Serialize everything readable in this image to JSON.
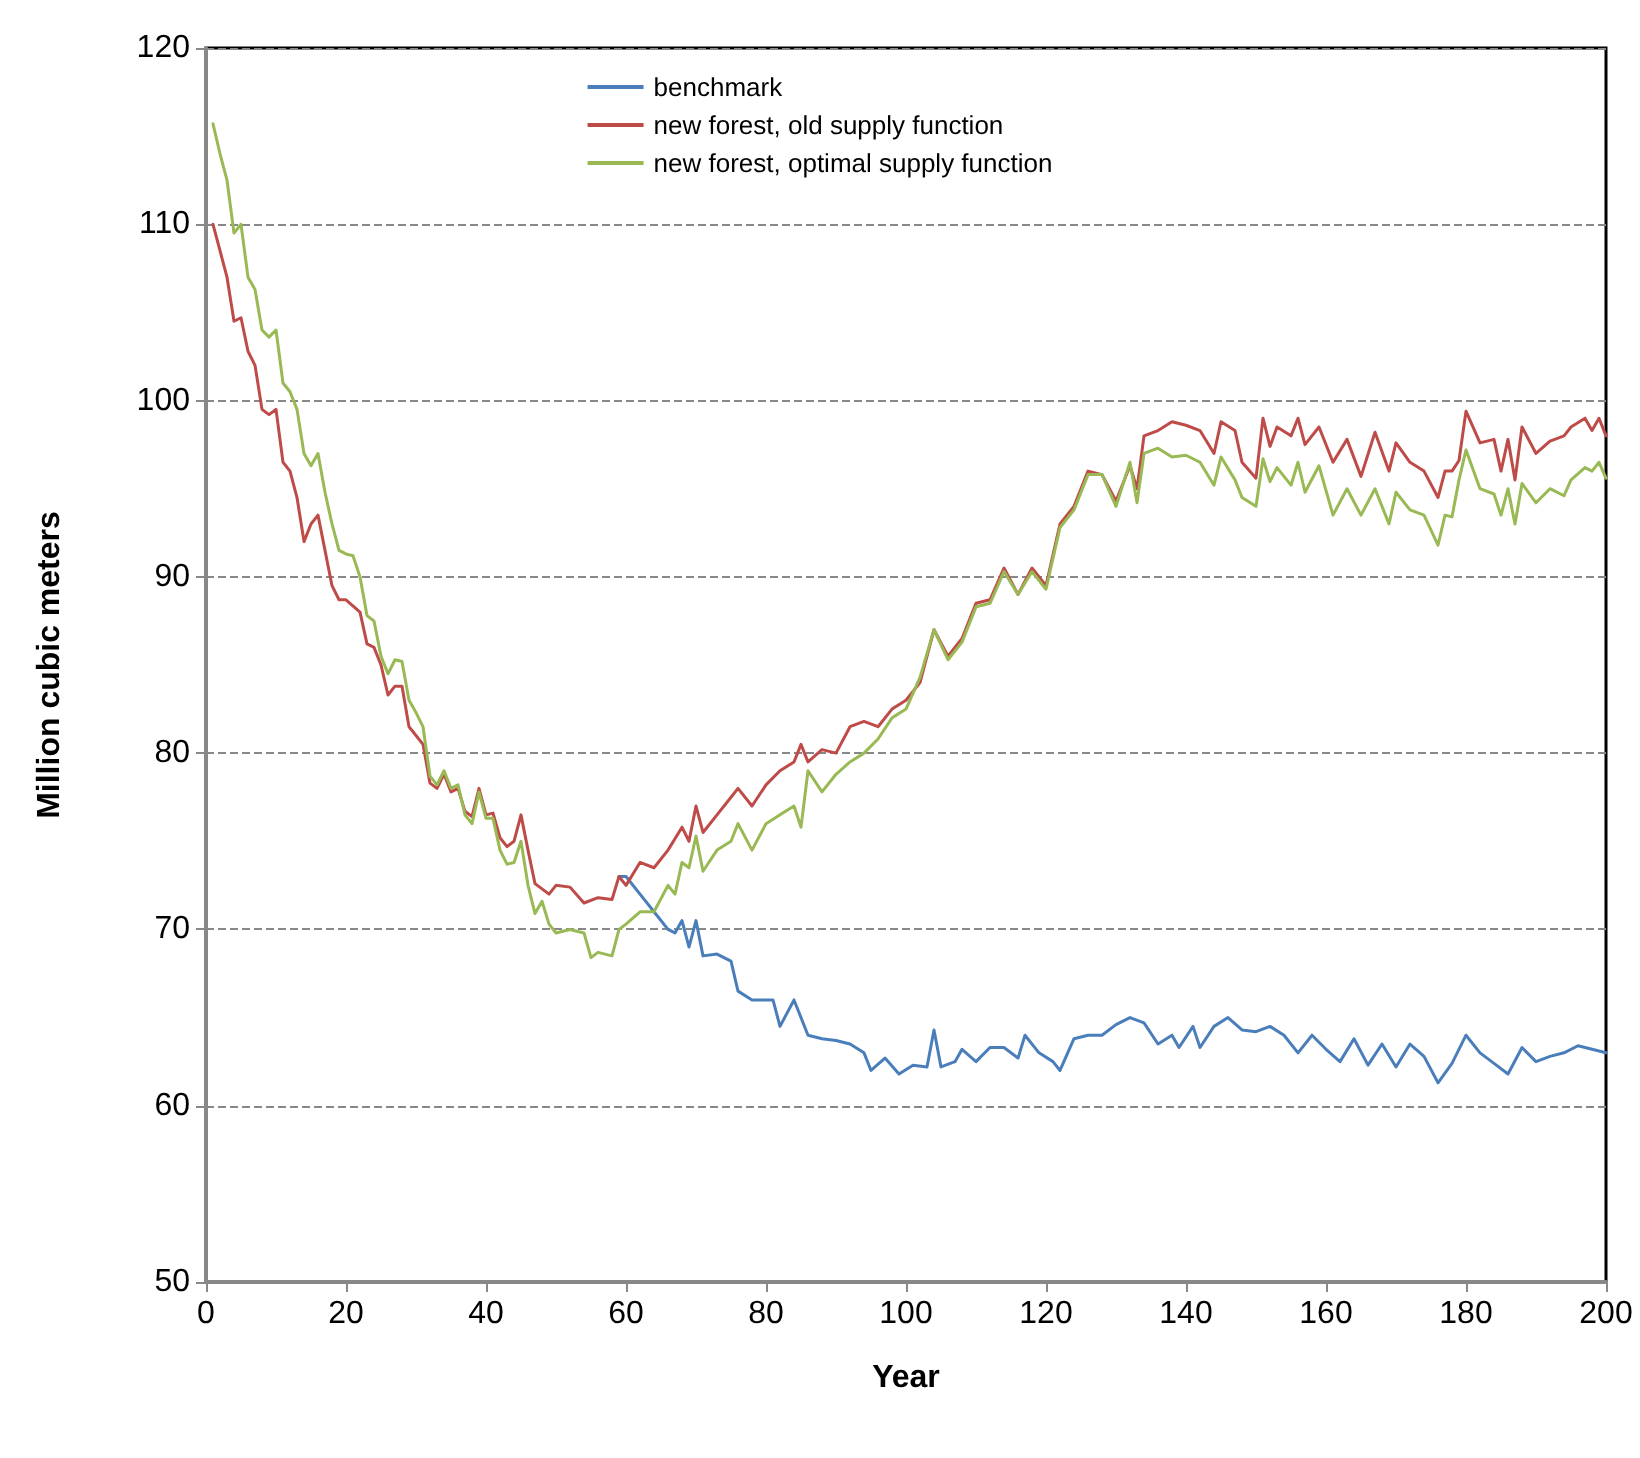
{
  "chart_data": {
    "type": "line",
    "xlabel": "Year",
    "ylabel": "Million cubic meters",
    "xlim": [
      0,
      200
    ],
    "xticks": [
      0,
      20,
      40,
      60,
      80,
      100,
      120,
      140,
      160,
      180,
      200
    ],
    "ylim": [
      50,
      120
    ],
    "yticks": [
      50,
      60,
      70,
      80,
      90,
      100,
      110,
      120
    ],
    "grid": "y",
    "legend": "top",
    "marker": "none",
    "line_style": "solid",
    "series": [
      {
        "name": "benchmark",
        "color": "#4a7ebb",
        "x": [
          59,
          60,
          62,
          64,
          66,
          67,
          68,
          69,
          70,
          71,
          73,
          75,
          76,
          78,
          80,
          81,
          82,
          84,
          86,
          88,
          90,
          92,
          94,
          95,
          97,
          99,
          101,
          103,
          104,
          105,
          107,
          108,
          110,
          112,
          114,
          116,
          117,
          119,
          121,
          122,
          124,
          126,
          128,
          130,
          132,
          134,
          136,
          138,
          139,
          141,
          142,
          144,
          146,
          148,
          150,
          152,
          154,
          156,
          158,
          160,
          162,
          164,
          166,
          168,
          170,
          172,
          174,
          176,
          178,
          180,
          182,
          184,
          186,
          188,
          190,
          192,
          194,
          196,
          198,
          200
        ],
        "values": [
          73,
          73,
          72,
          71,
          70,
          69.8,
          70.5,
          69,
          70.5,
          68.5,
          68.6,
          68.2,
          66.5,
          66,
          66,
          66,
          64.5,
          66,
          64,
          63.8,
          63.7,
          63.5,
          63,
          62,
          62.7,
          61.8,
          62.3,
          62.2,
          64.3,
          62.2,
          62.5,
          63.2,
          62.5,
          63.3,
          63.3,
          62.7,
          64,
          63,
          62.5,
          62,
          63.8,
          64,
          64,
          64.6,
          65,
          64.7,
          63.5,
          64,
          63.3,
          64.5,
          63.3,
          64.5,
          65,
          64.3,
          64.2,
          64.5,
          64,
          63,
          64,
          63.2,
          62.5,
          63.8,
          62.3,
          63.5,
          62.2,
          63.5,
          62.8,
          61.3,
          62.4,
          64,
          63,
          62.4,
          61.8,
          63.3,
          62.5,
          62.8,
          63,
          63.4,
          63.2,
          63
        ]
      },
      {
        "name": "new forest, old supply function",
        "color": "#be4b48",
        "x": [
          1,
          2,
          3,
          4,
          5,
          6,
          7,
          8,
          9,
          10,
          11,
          12,
          13,
          14,
          15,
          16,
          17,
          18,
          19,
          20,
          22,
          23,
          24,
          25,
          26,
          27,
          28,
          29,
          30,
          31,
          32,
          33,
          34,
          35,
          36,
          37,
          38,
          39,
          40,
          41,
          42,
          43,
          44,
          45,
          46,
          47,
          48,
          49,
          50,
          52,
          54,
          56,
          58,
          59,
          60,
          62,
          64,
          66,
          68,
          69,
          70,
          71,
          73,
          75,
          76,
          78,
          80,
          82,
          84,
          85,
          86,
          88,
          90,
          92,
          94,
          96,
          98,
          100,
          102,
          104,
          106,
          108,
          110,
          112,
          114,
          116,
          118,
          120,
          122,
          124,
          126,
          128,
          130,
          132,
          133,
          134,
          136,
          138,
          140,
          142,
          144,
          145,
          147,
          148,
          150,
          151,
          152,
          153,
          155,
          156,
          157,
          159,
          161,
          163,
          165,
          167,
          169,
          170,
          172,
          174,
          176,
          177,
          178,
          179,
          180,
          182,
          184,
          185,
          186,
          187,
          188,
          190,
          192,
          194,
          195,
          197,
          198,
          199,
          200
        ],
        "values": [
          110,
          108.5,
          107,
          104.5,
          104.7,
          102.8,
          102,
          99.5,
          99.2,
          99.5,
          96.5,
          96,
          94.5,
          92,
          93,
          93.5,
          91.5,
          89.5,
          88.7,
          88.7,
          88,
          86.2,
          86,
          85,
          83.3,
          83.8,
          83.8,
          81.5,
          81,
          80.5,
          78.3,
          78,
          78.8,
          77.8,
          78,
          76.7,
          76.4,
          78,
          76.5,
          76.6,
          75.2,
          74.7,
          75,
          76.5,
          74.5,
          72.6,
          72.3,
          72,
          72.5,
          72.4,
          71.5,
          71.8,
          71.7,
          73,
          72.5,
          73.8,
          73.5,
          74.5,
          75.8,
          75,
          77,
          75.5,
          76.5,
          77.5,
          78,
          77,
          78.2,
          79,
          79.5,
          80.5,
          79.5,
          80.2,
          80,
          81.5,
          81.8,
          81.5,
          82.5,
          83,
          84,
          87,
          85.5,
          86.5,
          88.5,
          88.7,
          90.5,
          89,
          90.5,
          89.5,
          93,
          94,
          96,
          95.8,
          94.3,
          96.3,
          95,
          98,
          98.3,
          98.8,
          98.6,
          98.3,
          97,
          98.8,
          98.3,
          96.5,
          95.6,
          99,
          97.4,
          98.5,
          98,
          99,
          97.5,
          98.5,
          96.5,
          97.8,
          95.7,
          98.2,
          96,
          97.6,
          96.5,
          96,
          94.5,
          96,
          96,
          96.6,
          99.4,
          97.6,
          97.8,
          96,
          97.8,
          95.5,
          98.5,
          97,
          97.7,
          98,
          98.5,
          99,
          98.3,
          99,
          98
        ]
      },
      {
        "name": "new forest, optimal supply function",
        "color": "#98b954",
        "x": [
          1,
          2,
          3,
          4,
          5,
          6,
          7,
          8,
          9,
          10,
          11,
          12,
          13,
          14,
          15,
          16,
          17,
          18,
          19,
          20,
          21,
          22,
          23,
          24,
          25,
          26,
          27,
          28,
          29,
          30,
          31,
          32,
          33,
          34,
          35,
          36,
          37,
          38,
          39,
          40,
          41,
          42,
          43,
          44,
          45,
          46,
          47,
          48,
          49,
          50,
          52,
          54,
          55,
          56,
          58,
          59,
          60,
          62,
          64,
          66,
          67,
          68,
          69,
          70,
          71,
          73,
          75,
          76,
          78,
          80,
          82,
          84,
          85,
          86,
          88,
          90,
          92,
          94,
          96,
          98,
          100,
          102,
          104,
          106,
          108,
          110,
          112,
          114,
          116,
          118,
          120,
          122,
          124,
          126,
          128,
          130,
          132,
          133,
          134,
          136,
          138,
          140,
          142,
          144,
          145,
          147,
          148,
          150,
          151,
          152,
          153,
          155,
          156,
          157,
          159,
          161,
          163,
          165,
          167,
          169,
          170,
          172,
          174,
          176,
          177,
          178,
          179,
          180,
          182,
          184,
          185,
          186,
          187,
          188,
          190,
          192,
          194,
          195,
          197,
          198,
          199,
          200
        ],
        "values": [
          115.7,
          114,
          112.5,
          109.5,
          110,
          107,
          106.3,
          104,
          103.6,
          104,
          101,
          100.5,
          99.5,
          97,
          96.3,
          97,
          94.8,
          93,
          91.5,
          91.3,
          91.2,
          90,
          87.8,
          87.5,
          85.5,
          84.5,
          85.3,
          85.2,
          83,
          82.3,
          81.5,
          78.7,
          78.2,
          79,
          78,
          78.2,
          76.5,
          76,
          77.8,
          76.3,
          76.3,
          74.5,
          73.7,
          73.8,
          75,
          72.5,
          70.9,
          71.6,
          70.3,
          69.8,
          70,
          69.8,
          68.4,
          68.7,
          68.5,
          70,
          70.3,
          71,
          71,
          72.5,
          72,
          73.8,
          73.5,
          75.3,
          73.3,
          74.5,
          75,
          76,
          74.5,
          76,
          76.5,
          77,
          75.8,
          79,
          77.8,
          78.8,
          79.5,
          80,
          80.8,
          82,
          82.5,
          84.3,
          87,
          85.3,
          86.3,
          88.3,
          88.5,
          90.3,
          89,
          90.3,
          89.3,
          92.8,
          93.8,
          95.8,
          95.8,
          94,
          96.5,
          94.2,
          97,
          97.3,
          96.8,
          96.9,
          96.5,
          95.2,
          96.8,
          95.5,
          94.5,
          94,
          96.7,
          95.4,
          96.2,
          95.2,
          96.5,
          94.8,
          96.3,
          93.5,
          95,
          93.5,
          95,
          93,
          94.8,
          93.8,
          93.5,
          91.8,
          93.5,
          93.4,
          95.5,
          97.2,
          95,
          94.7,
          93.5,
          95,
          93,
          95.3,
          94.2,
          95,
          94.6,
          95.5,
          96.2,
          96,
          96.5,
          95.6
        ]
      }
    ]
  }
}
